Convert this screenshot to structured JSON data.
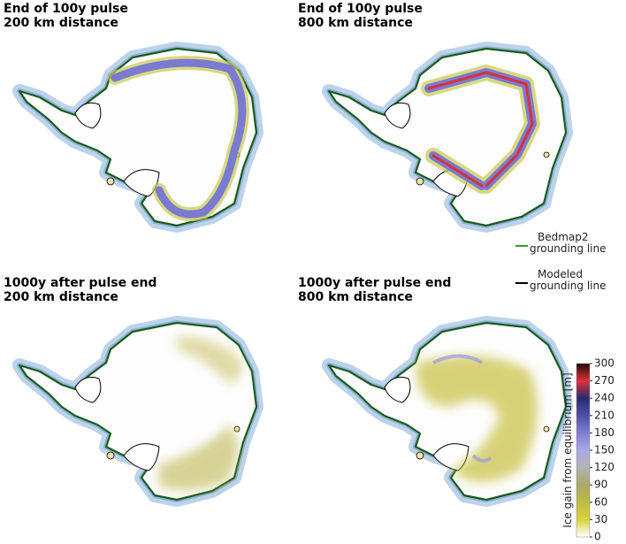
{
  "panels": [
    {
      "title": [
        "End of 100y pulse",
        "200 km distance"
      ]
    },
    {
      "title": [
        "End of 100y pulse",
        "800 km distance"
      ]
    },
    {
      "title": [
        "1000y after pulse end",
        "200 km distance"
      ]
    },
    {
      "title": [
        "1000y after pulse end",
        "800 km distance"
      ]
    }
  ],
  "legend": [
    {
      "label": [
        "Bedmap2",
        "grounding line"
      ],
      "color": "#2ca02c"
    },
    {
      "label": [
        "Modeled",
        "grounding line"
      ],
      "color": "#000000"
    }
  ],
  "colorbar": {
    "label": "Ice gain from equilibrium [m]",
    "lim": [
      0,
      300
    ],
    "ticks": [
      0,
      30,
      60,
      90,
      120,
      150,
      180,
      210,
      240,
      270,
      300
    ],
    "colors": [
      "#ffffff",
      "#d8d23a",
      "#bdbd45",
      "#a8a86a",
      "#b4b4b4",
      "#a9a9e8",
      "#7f7fd0",
      "#4f4fa8",
      "#2a2a70",
      "#e0303a",
      "#200808"
    ]
  }
}
